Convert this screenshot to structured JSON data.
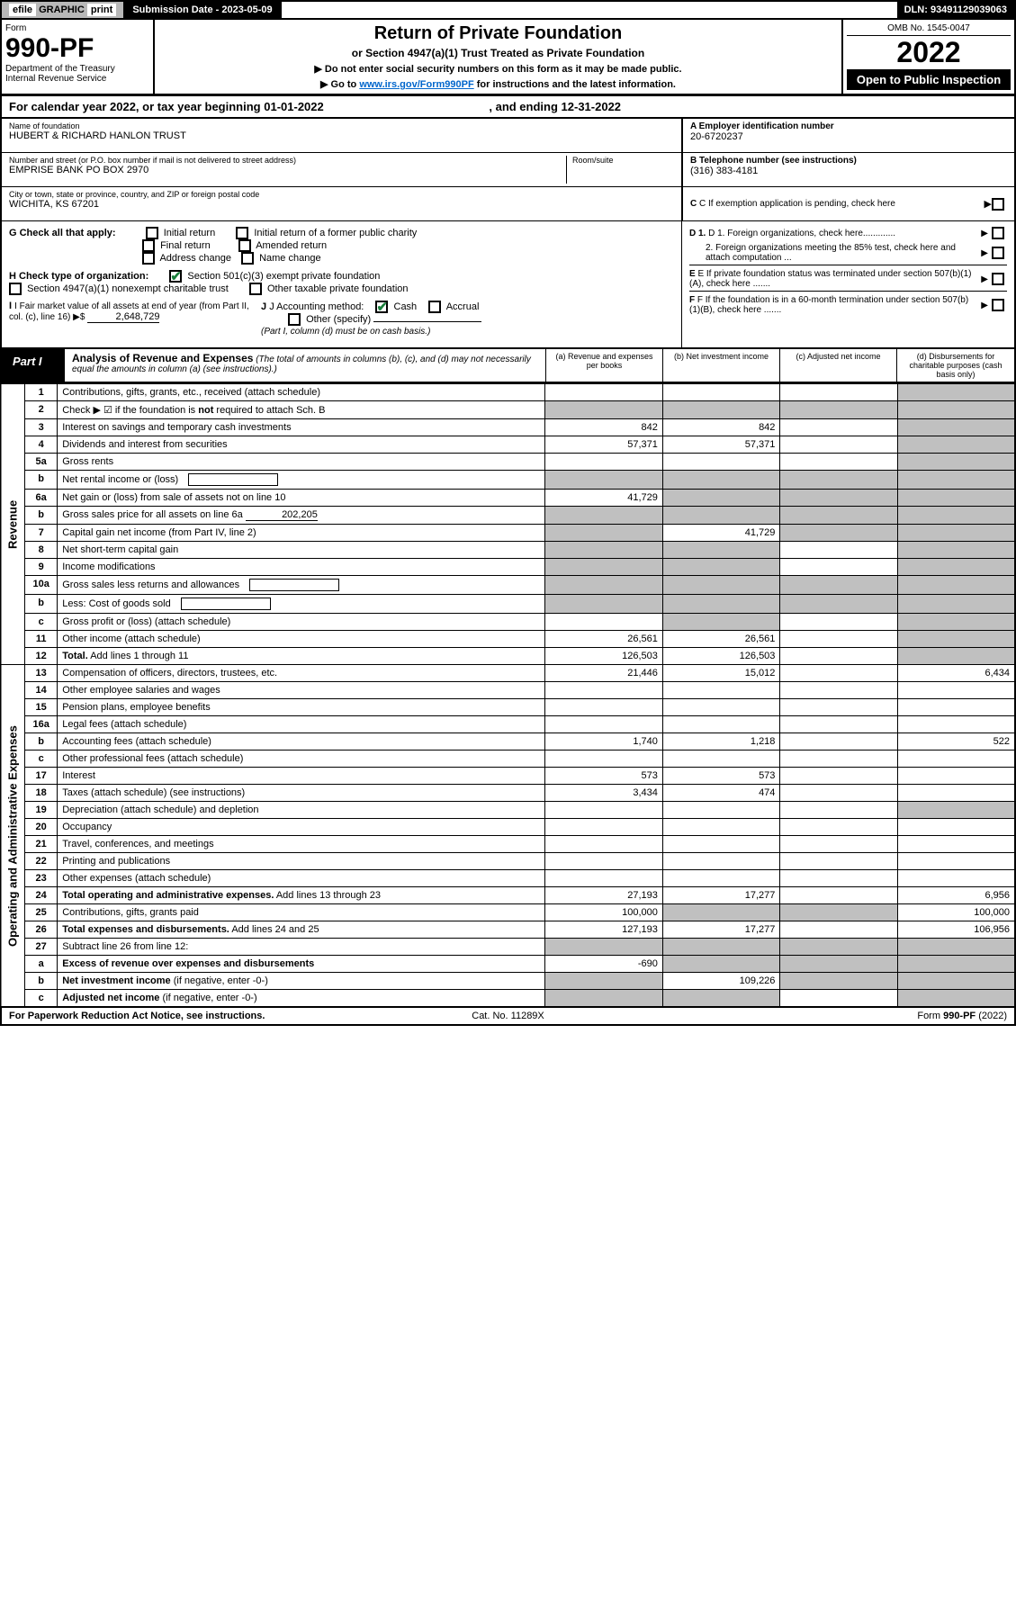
{
  "top": {
    "efile_prefix": "efile",
    "efile_graphic": "GRAPHIC",
    "efile_print": "print",
    "sub_date_label": "Submission Date - 2023-05-09",
    "dln": "DLN: 93491129039063"
  },
  "header": {
    "form_label": "Form",
    "form_number": "990-PF",
    "dept1": "Department of the Treasury",
    "dept2": "Internal Revenue Service",
    "title": "Return of Private Foundation",
    "subtitle": "or Section 4947(a)(1) Trust Treated as Private Foundation",
    "notice1": "▶ Do not enter social security numbers on this form as it may be made public.",
    "notice2_pre": "▶ Go to ",
    "notice2_link": "www.irs.gov/Form990PF",
    "notice2_post": " for instructions and the latest information.",
    "omb": "OMB No. 1545-0047",
    "year": "2022",
    "open_public": "Open to Public Inspection"
  },
  "cal_year": {
    "text_pre": "For calendar year 2022, or tax year beginning ",
    "begin": "01-01-2022",
    "text_mid": ", and ending ",
    "end": "12-31-2022"
  },
  "entity": {
    "name_label": "Name of foundation",
    "name_value": "HUBERT & RICHARD HANLON TRUST",
    "addr_label": "Number and street (or P.O. box number if mail is not delivered to street address)",
    "addr_value": "EMPRISE BANK PO BOX 2970",
    "room_label": "Room/suite",
    "city_label": "City or town, state or province, country, and ZIP or foreign postal code",
    "city_value": "WICHITA, KS  67201",
    "a_label": "A Employer identification number",
    "a_value": "20-6720237",
    "b_label": "B Telephone number (see instructions)",
    "b_value": "(316) 383-4181",
    "c_label": "C If exemption application is pending, check here",
    "d1_label": "D 1. Foreign organizations, check here.............",
    "d2_label": "2. Foreign organizations meeting the 85% test, check here and attach computation ...",
    "e_label": "E If private foundation status was terminated under section 507(b)(1)(A), check here .......",
    "f_label": "F If the foundation is in a 60-month termination under section 507(b)(1)(B), check here ......."
  },
  "checks": {
    "g_label": "G Check all that apply:",
    "g_opts": [
      "Initial return",
      "Initial return of a former public charity",
      "Final return",
      "Amended return",
      "Address change",
      "Name change"
    ],
    "h_label": "H Check type of organization:",
    "h_opt1": "Section 501(c)(3) exempt private foundation",
    "h_opt2": "Section 4947(a)(1) nonexempt charitable trust",
    "h_opt3": "Other taxable private foundation",
    "i_label": "I Fair market value of all assets at end of year (from Part II, col. (c), line 16) ▶$",
    "i_value": "2,648,729",
    "j_label": "J Accounting method:",
    "j_cash": "Cash",
    "j_accrual": "Accrual",
    "j_other": "Other (specify)",
    "j_note": "(Part I, column (d) must be on cash basis.)"
  },
  "part1": {
    "label": "Part I",
    "title": "Analysis of Revenue and Expenses",
    "title_note": "(The total of amounts in columns (b), (c), and (d) may not necessarily equal the amounts in column (a) (see instructions).)",
    "col_a": "(a) Revenue and expenses per books",
    "col_b": "(b) Net investment income",
    "col_c": "(c) Adjusted net income",
    "col_d": "(d) Disbursements for charitable purposes (cash basis only)"
  },
  "side_labels": {
    "revenue": "Revenue",
    "expenses": "Operating and Administrative Expenses"
  },
  "rows": [
    {
      "n": "1",
      "d": "Contributions, gifts, grants, etc., received (attach schedule)",
      "a": "",
      "b": "",
      "c": "",
      "dd": "",
      "grey_c": false,
      "grey_d": true
    },
    {
      "n": "2",
      "d": "Check ▶ ☑ if the foundation is <b>not</b> required to attach Sch. B",
      "a": "",
      "b": "",
      "c": "",
      "dd": "",
      "grey_a": true,
      "grey_b": true,
      "grey_c": true,
      "grey_d": true
    },
    {
      "n": "3",
      "d": "Interest on savings and temporary cash investments",
      "a": "842",
      "b": "842",
      "c": "",
      "dd": "",
      "grey_d": true
    },
    {
      "n": "4",
      "d": "Dividends and interest from securities",
      "a": "57,371",
      "b": "57,371",
      "c": "",
      "dd": "",
      "grey_d": true
    },
    {
      "n": "5a",
      "d": "Gross rents",
      "a": "",
      "b": "",
      "c": "",
      "dd": "",
      "grey_d": true
    },
    {
      "n": "b",
      "d": "Net rental income or (loss)",
      "a": "",
      "b": "",
      "c": "",
      "dd": "",
      "grey_a": true,
      "grey_b": true,
      "grey_c": true,
      "grey_d": true,
      "inline_box": true
    },
    {
      "n": "6a",
      "d": "Net gain or (loss) from sale of assets not on line 10",
      "a": "41,729",
      "b": "",
      "c": "",
      "dd": "",
      "grey_b": true,
      "grey_c": true,
      "grey_d": true
    },
    {
      "n": "b",
      "d": "Gross sales price for all assets on line 6a",
      "a": "",
      "b": "",
      "c": "",
      "dd": "",
      "grey_a": true,
      "grey_b": true,
      "grey_c": true,
      "grey_d": true,
      "inline_val": "202,205"
    },
    {
      "n": "7",
      "d": "Capital gain net income (from Part IV, line 2)",
      "a": "",
      "b": "41,729",
      "c": "",
      "dd": "",
      "grey_a": true,
      "grey_c": true,
      "grey_d": true
    },
    {
      "n": "8",
      "d": "Net short-term capital gain",
      "a": "",
      "b": "",
      "c": "",
      "dd": "",
      "grey_a": true,
      "grey_b": true,
      "grey_d": true
    },
    {
      "n": "9",
      "d": "Income modifications",
      "a": "",
      "b": "",
      "c": "",
      "dd": "",
      "grey_a": true,
      "grey_b": true,
      "grey_d": true
    },
    {
      "n": "10a",
      "d": "Gross sales less returns and allowances",
      "a": "",
      "b": "",
      "c": "",
      "dd": "",
      "grey_a": true,
      "grey_b": true,
      "grey_c": true,
      "grey_d": true,
      "inline_box": true
    },
    {
      "n": "b",
      "d": "Less: Cost of goods sold",
      "a": "",
      "b": "",
      "c": "",
      "dd": "",
      "grey_a": true,
      "grey_b": true,
      "grey_c": true,
      "grey_d": true,
      "inline_box": true
    },
    {
      "n": "c",
      "d": "Gross profit or (loss) (attach schedule)",
      "a": "",
      "b": "",
      "c": "",
      "dd": "",
      "grey_b": true,
      "grey_d": true
    },
    {
      "n": "11",
      "d": "Other income (attach schedule)",
      "a": "26,561",
      "b": "26,561",
      "c": "",
      "dd": "",
      "grey_d": true
    },
    {
      "n": "12",
      "d": "<b>Total.</b> Add lines 1 through 11",
      "a": "126,503",
      "b": "126,503",
      "c": "",
      "dd": "",
      "grey_d": true,
      "bold": true
    },
    {
      "n": "13",
      "d": "Compensation of officers, directors, trustees, etc.",
      "a": "21,446",
      "b": "15,012",
      "c": "",
      "dd": "6,434"
    },
    {
      "n": "14",
      "d": "Other employee salaries and wages",
      "a": "",
      "b": "",
      "c": "",
      "dd": ""
    },
    {
      "n": "15",
      "d": "Pension plans, employee benefits",
      "a": "",
      "b": "",
      "c": "",
      "dd": ""
    },
    {
      "n": "16a",
      "d": "Legal fees (attach schedule)",
      "a": "",
      "b": "",
      "c": "",
      "dd": ""
    },
    {
      "n": "b",
      "d": "Accounting fees (attach schedule)",
      "a": "1,740",
      "b": "1,218",
      "c": "",
      "dd": "522"
    },
    {
      "n": "c",
      "d": "Other professional fees (attach schedule)",
      "a": "",
      "b": "",
      "c": "",
      "dd": ""
    },
    {
      "n": "17",
      "d": "Interest",
      "a": "573",
      "b": "573",
      "c": "",
      "dd": ""
    },
    {
      "n": "18",
      "d": "Taxes (attach schedule) (see instructions)",
      "a": "3,434",
      "b": "474",
      "c": "",
      "dd": ""
    },
    {
      "n": "19",
      "d": "Depreciation (attach schedule) and depletion",
      "a": "",
      "b": "",
      "c": "",
      "dd": "",
      "grey_d": true
    },
    {
      "n": "20",
      "d": "Occupancy",
      "a": "",
      "b": "",
      "c": "",
      "dd": ""
    },
    {
      "n": "21",
      "d": "Travel, conferences, and meetings",
      "a": "",
      "b": "",
      "c": "",
      "dd": ""
    },
    {
      "n": "22",
      "d": "Printing and publications",
      "a": "",
      "b": "",
      "c": "",
      "dd": ""
    },
    {
      "n": "23",
      "d": "Other expenses (attach schedule)",
      "a": "",
      "b": "",
      "c": "",
      "dd": ""
    },
    {
      "n": "24",
      "d": "<b>Total operating and administrative expenses.</b> Add lines 13 through 23",
      "a": "27,193",
      "b": "17,277",
      "c": "",
      "dd": "6,956",
      "bold": true
    },
    {
      "n": "25",
      "d": "Contributions, gifts, grants paid",
      "a": "100,000",
      "b": "",
      "c": "",
      "dd": "100,000",
      "grey_b": true,
      "grey_c": true
    },
    {
      "n": "26",
      "d": "<b>Total expenses and disbursements.</b> Add lines 24 and 25",
      "a": "127,193",
      "b": "17,277",
      "c": "",
      "dd": "106,956",
      "bold": true
    },
    {
      "n": "27",
      "d": "Subtract line 26 from line 12:",
      "a": "",
      "b": "",
      "c": "",
      "dd": "",
      "grey_a": true,
      "grey_b": true,
      "grey_c": true,
      "grey_d": true
    },
    {
      "n": "a",
      "d": "<b>Excess of revenue over expenses and disbursements</b>",
      "a": "-690",
      "b": "",
      "c": "",
      "dd": "",
      "grey_b": true,
      "grey_c": true,
      "grey_d": true
    },
    {
      "n": "b",
      "d": "<b>Net investment income</b> (if negative, enter -0-)",
      "a": "",
      "b": "109,226",
      "c": "",
      "dd": "",
      "grey_a": true,
      "grey_c": true,
      "grey_d": true
    },
    {
      "n": "c",
      "d": "<b>Adjusted net income</b> (if negative, enter -0-)",
      "a": "",
      "b": "",
      "c": "",
      "dd": "",
      "grey_a": true,
      "grey_b": true,
      "grey_d": true
    }
  ],
  "footer": {
    "left": "For Paperwork Reduction Act Notice, see instructions.",
    "center": "Cat. No. 11289X",
    "right": "Form 990-PF (2022)"
  }
}
